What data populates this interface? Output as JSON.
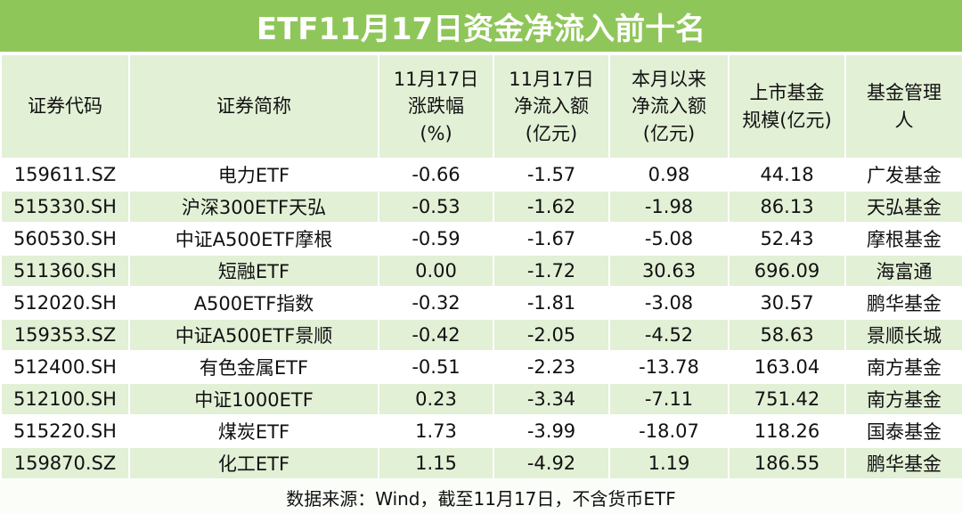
{
  "header": {
    "title": "ETF11月17日资金净流入前十名"
  },
  "table": {
    "columns": [
      [
        "证券代码"
      ],
      [
        "证券简称"
      ],
      [
        "11月17日",
        "涨跌幅",
        "(%)"
      ],
      [
        "11月17日",
        "净流入额",
        "(亿元)"
      ],
      [
        "本月以来",
        "净流入额",
        "(亿元)"
      ],
      [
        "上市基金",
        "规模(亿元)"
      ],
      [
        "基金管理",
        "人"
      ]
    ],
    "rows": [
      [
        "159611.SZ",
        "电力ETF",
        "-0.66",
        "-1.57",
        "0.98",
        "44.18",
        "广发基金"
      ],
      [
        "515330.SH",
        "沪深300ETF天弘",
        "-0.53",
        "-1.62",
        "-1.98",
        "86.13",
        "天弘基金"
      ],
      [
        "560530.SH",
        "中证A500ETF摩根",
        "-0.59",
        "-1.67",
        "-5.08",
        "52.43",
        "摩根基金"
      ],
      [
        "511360.SH",
        "短融ETF",
        "0.00",
        "-1.72",
        "30.63",
        "696.09",
        "海富通"
      ],
      [
        "512020.SH",
        "A500ETF指数",
        "-0.32",
        "-1.81",
        "-3.08",
        "30.57",
        "鹏华基金"
      ],
      [
        "159353.SZ",
        "中证A500ETF景顺",
        "-0.42",
        "-2.05",
        "-4.52",
        "58.63",
        "景顺长城"
      ],
      [
        "512400.SH",
        "有色金属ETF",
        "-0.51",
        "-2.23",
        "-13.78",
        "163.04",
        "南方基金"
      ],
      [
        "512100.SH",
        "中证1000ETF",
        "0.23",
        "-3.34",
        "-7.11",
        "751.42",
        "南方基金"
      ],
      [
        "515220.SH",
        "煤炭ETF",
        "1.73",
        "-3.99",
        "-18.07",
        "118.26",
        "国泰基金"
      ],
      [
        "159870.SZ",
        "化工ETF",
        "1.15",
        "-4.92",
        "1.19",
        "186.55",
        "鹏华基金"
      ]
    ]
  },
  "footer": {
    "note": "数据来源：Wind，截至11月17日，不含货币ETF"
  }
}
